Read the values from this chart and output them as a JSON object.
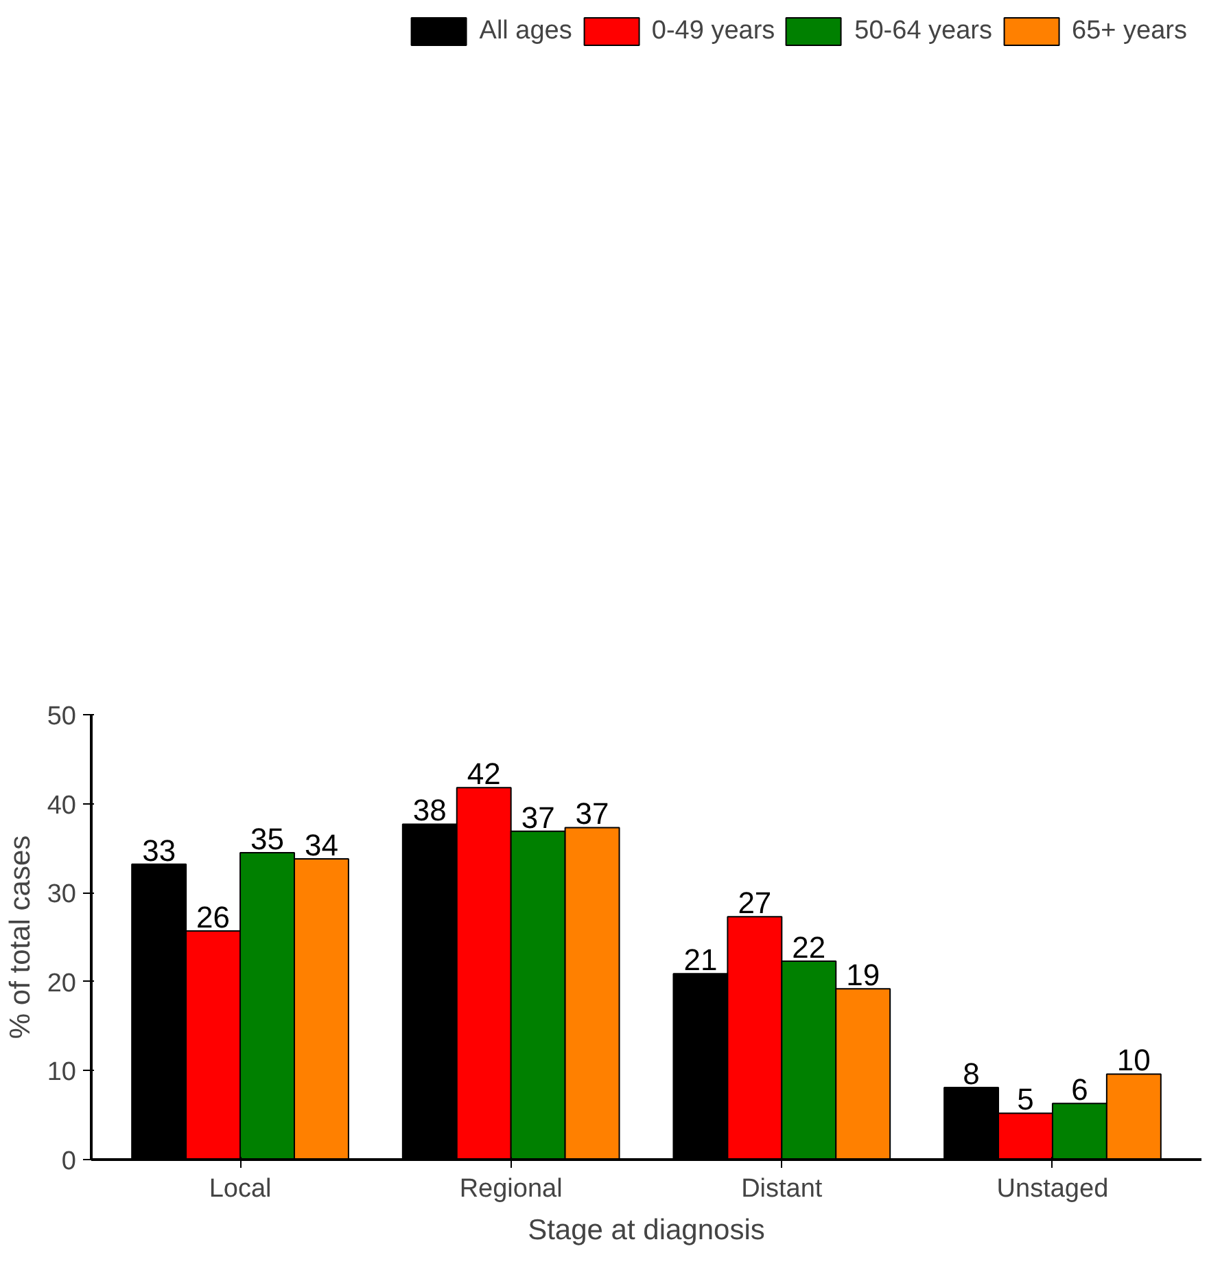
{
  "chart_data": {
    "type": "bar",
    "xlabel": "Stage at diagnosis",
    "ylabel": "% of total cases",
    "categories": [
      "Local",
      "Regional",
      "Distant",
      "Unstaged"
    ],
    "series": [
      {
        "name": "All ages",
        "color": "#000000",
        "values": [
          33.2,
          37.7,
          20.9,
          8.1
        ],
        "value_labels": [
          "33",
          "38",
          "21",
          "8"
        ]
      },
      {
        "name": "0-49 years",
        "color": "#ff0000",
        "values": [
          25.7,
          41.8,
          27.3,
          5.2
        ],
        "value_labels": [
          "26",
          "42",
          "27",
          "5"
        ]
      },
      {
        "name": "50-64 years",
        "color": "#008000",
        "values": [
          34.5,
          36.9,
          22.3,
          6.3
        ],
        "value_labels": [
          "35",
          "37",
          "22",
          "6"
        ]
      },
      {
        "name": "65+ years",
        "color": "#ff8000",
        "values": [
          33.8,
          37.3,
          19.2,
          9.6
        ],
        "value_labels": [
          "34",
          "37",
          "19",
          "10"
        ]
      }
    ],
    "ylim": [
      0,
      50
    ],
    "yticks": [
      0,
      10,
      20,
      30,
      40,
      50
    ],
    "grid": false,
    "legend": "top"
  }
}
